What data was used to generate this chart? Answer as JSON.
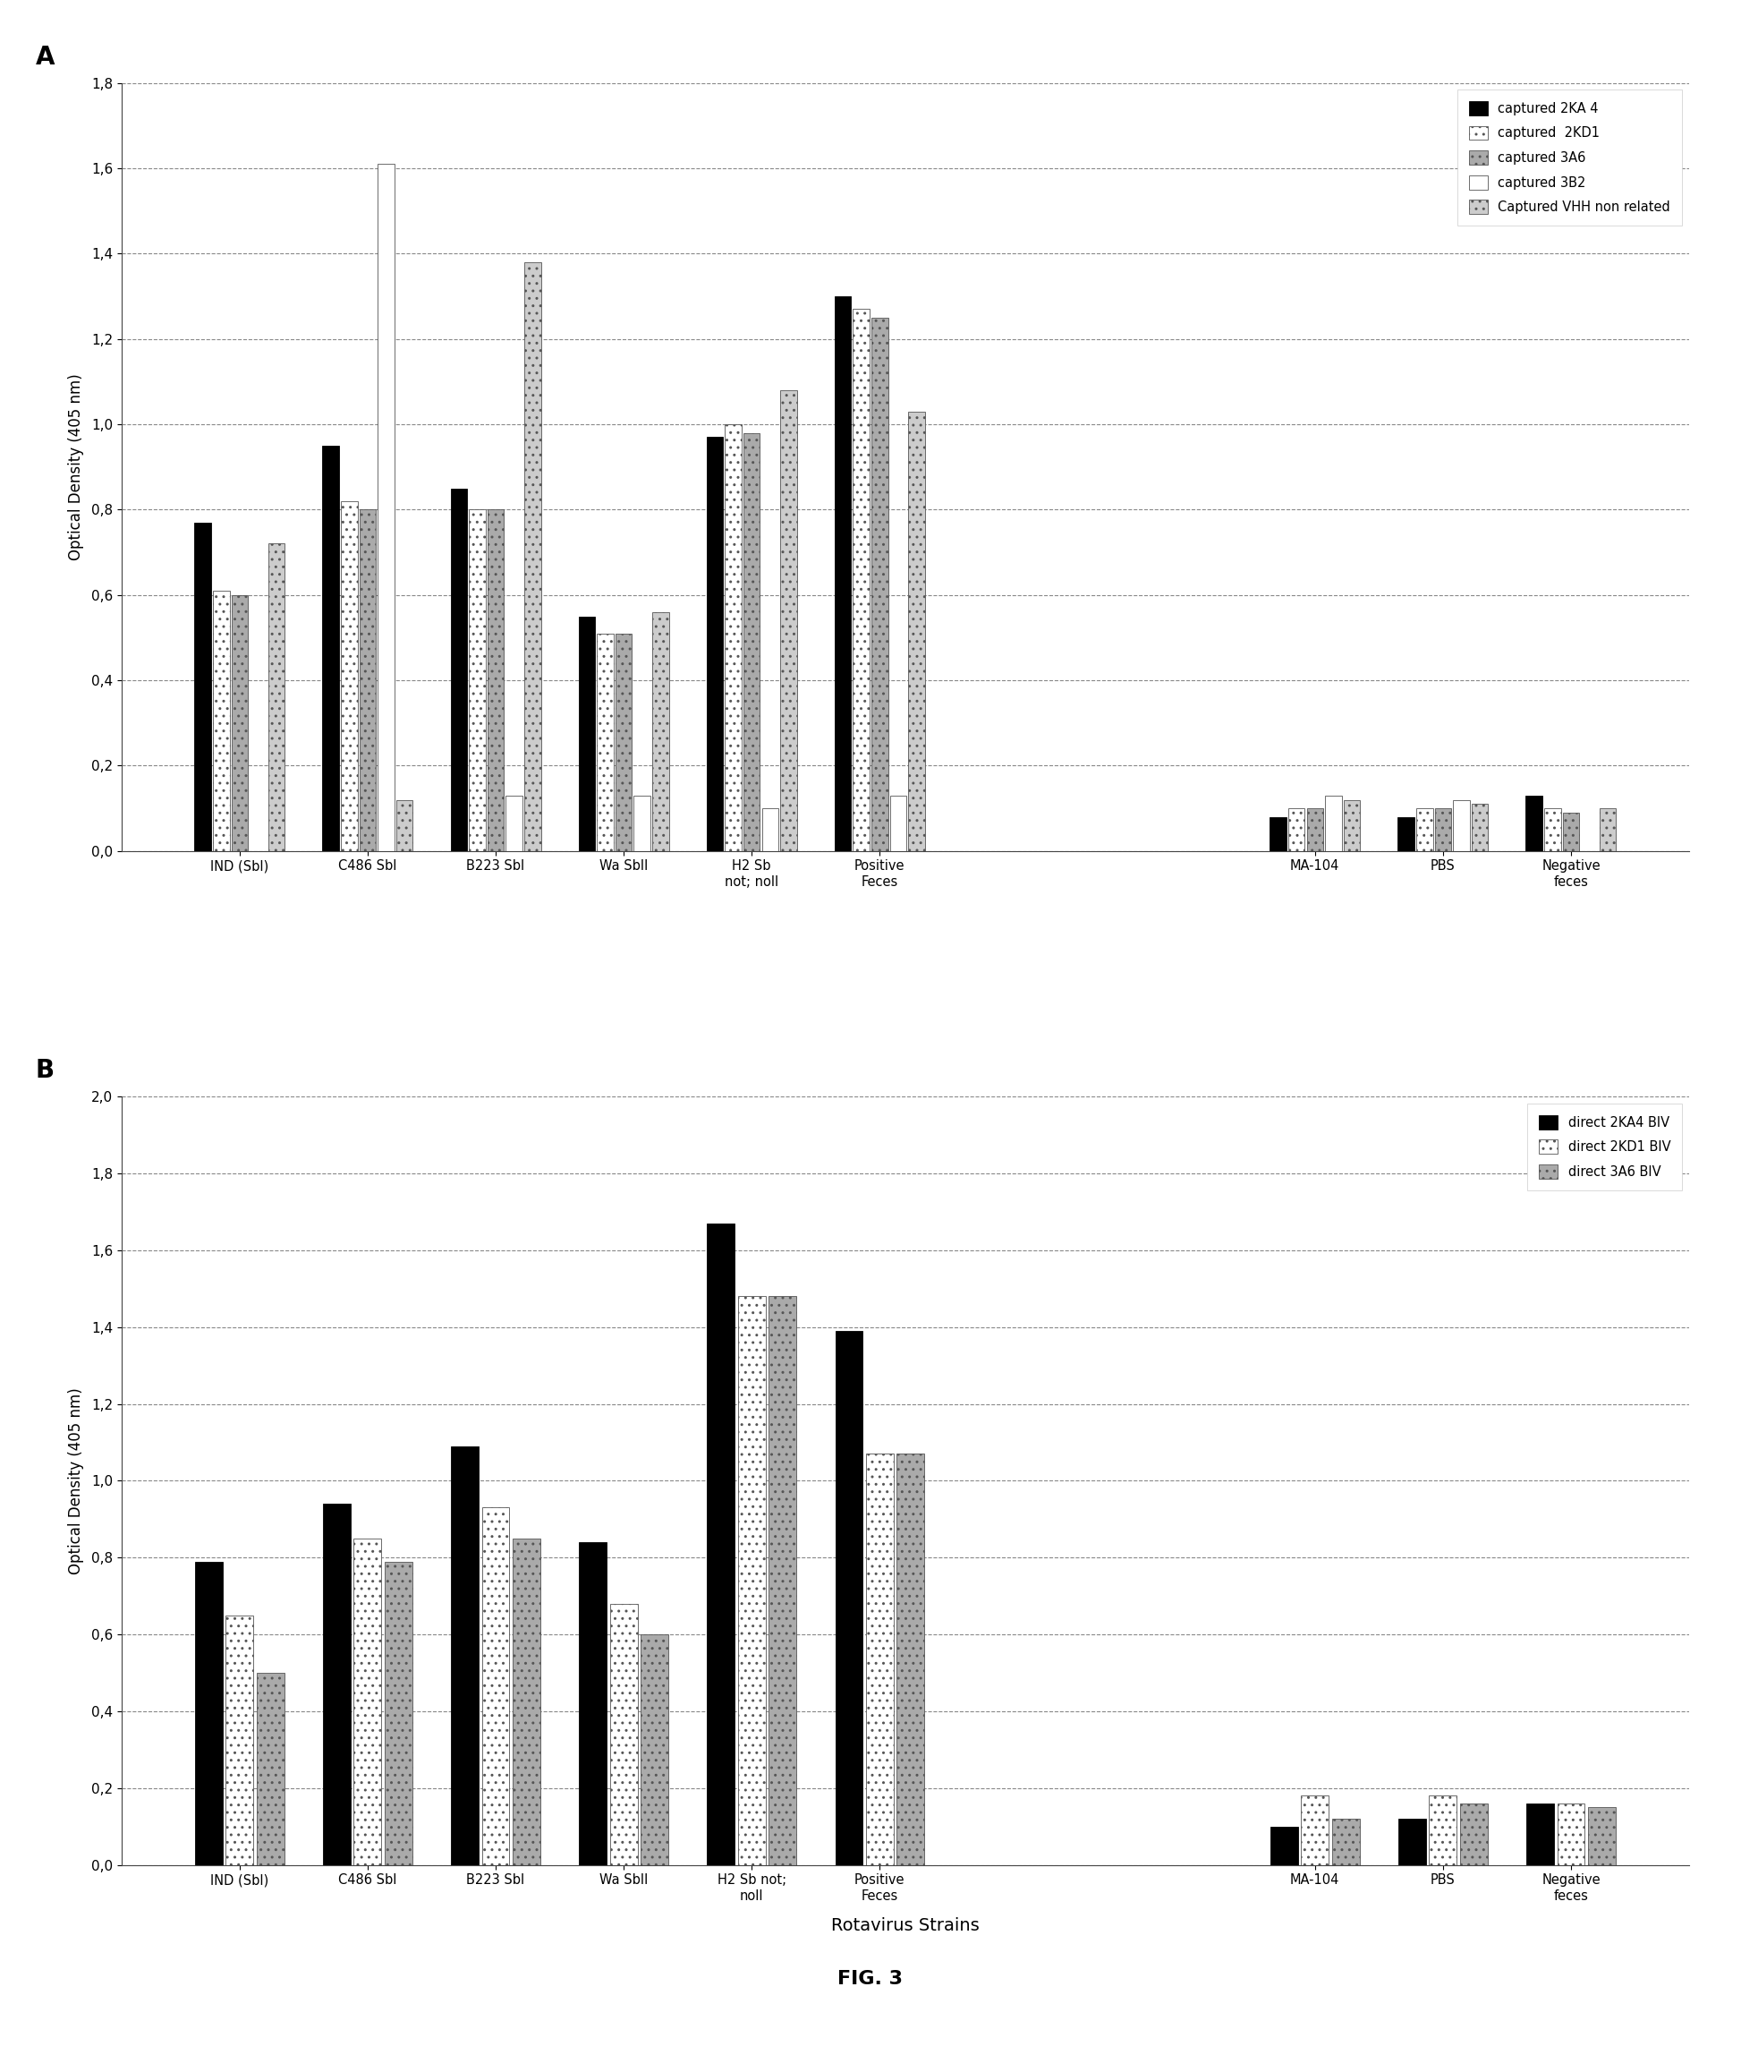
{
  "chart_A": {
    "title_label": "A",
    "ylabel": "Optical Density (405 nm)",
    "ylim": [
      0,
      1.8
    ],
    "yticks": [
      0.0,
      0.2,
      0.4,
      0.6,
      0.8,
      1.0,
      1.2,
      1.4,
      1.6,
      1.8
    ],
    "ytick_labels": [
      "0,0",
      "0,2",
      "0,4",
      "0,6",
      "0,8",
      "1,0",
      "1,2",
      "1,4",
      "1,6",
      "1,8"
    ],
    "categories": [
      "IND (SbI)",
      "C486 SbI",
      "B223 SbI",
      "Wa SbII",
      "H2 Sb\nnot; noll",
      "Positive\nFeces",
      "",
      "MA-104",
      "PBS",
      "Negative\nfeces"
    ],
    "series": [
      {
        "label": "captured 2KA 4",
        "color": "#000000",
        "hatch": "",
        "edge_color": "#000000",
        "values": [
          0.77,
          0.95,
          0.85,
          0.55,
          0.97,
          1.3,
          null,
          0.08,
          0.08,
          0.13
        ]
      },
      {
        "label": "captured  2KD1",
        "color": "#ffffff",
        "hatch": "..",
        "edge_color": "#555555",
        "values": [
          0.61,
          0.82,
          0.8,
          0.51,
          1.0,
          1.27,
          null,
          0.1,
          0.1,
          0.1
        ]
      },
      {
        "label": "captured 3A6",
        "color": "#aaaaaa",
        "hatch": "..",
        "edge_color": "#555555",
        "values": [
          0.6,
          0.8,
          0.8,
          0.51,
          0.98,
          1.25,
          null,
          0.1,
          0.1,
          0.09
        ]
      },
      {
        "label": "captured 3B2",
        "color": "#ffffff",
        "hatch": "",
        "edge_color": "#555555",
        "values": [
          0.0,
          1.61,
          0.13,
          0.13,
          0.1,
          0.13,
          null,
          0.13,
          0.12,
          0.0
        ]
      },
      {
        "label": "Captured VHH non related",
        "color": "#cccccc",
        "hatch": "..",
        "edge_color": "#555555",
        "values": [
          0.72,
          0.12,
          1.38,
          0.56,
          1.08,
          1.03,
          null,
          0.12,
          0.11,
          0.1
        ]
      }
    ],
    "legend_pos": "upper right"
  },
  "chart_B": {
    "title_label": "B",
    "ylabel": "Optical Density (405 nm)",
    "xlabel": "Rotavirus Strains",
    "ylim": [
      0,
      2.0
    ],
    "yticks": [
      0.0,
      0.2,
      0.4,
      0.6,
      0.8,
      1.0,
      1.2,
      1.4,
      1.6,
      1.8,
      2.0
    ],
    "ytick_labels": [
      "0,0",
      "0,2",
      "0,4",
      "0,6",
      "0,8",
      "1,0",
      "1,2",
      "1,4",
      "1,6",
      "1,8",
      "2,0"
    ],
    "categories": [
      "IND (SbI)",
      "C486 SbI",
      "B223 SbI",
      "Wa SbII",
      "H2 Sb not;\nnoll",
      "Positive\nFeces",
      "",
      "MA-104",
      "PBS",
      "Negative\nfeces"
    ],
    "series": [
      {
        "label": "direct 2KA4 BIV",
        "color": "#000000",
        "hatch": "",
        "edge_color": "#000000",
        "values": [
          0.79,
          0.94,
          1.09,
          0.84,
          1.67,
          1.39,
          null,
          0.1,
          0.12,
          0.16
        ]
      },
      {
        "label": "direct 2KD1 BIV",
        "color": "#ffffff",
        "hatch": "..",
        "edge_color": "#555555",
        "values": [
          0.65,
          0.85,
          0.93,
          0.68,
          1.48,
          1.07,
          null,
          0.18,
          0.18,
          0.16
        ]
      },
      {
        "label": "direct 3A6 BIV",
        "color": "#aaaaaa",
        "hatch": "..",
        "edge_color": "#555555",
        "values": [
          0.5,
          0.79,
          0.85,
          0.6,
          1.48,
          1.07,
          null,
          0.12,
          0.16,
          0.15
        ]
      }
    ],
    "legend_pos": "upper right"
  },
  "fig_label": "FIG. 3",
  "background_color": "#ffffff"
}
